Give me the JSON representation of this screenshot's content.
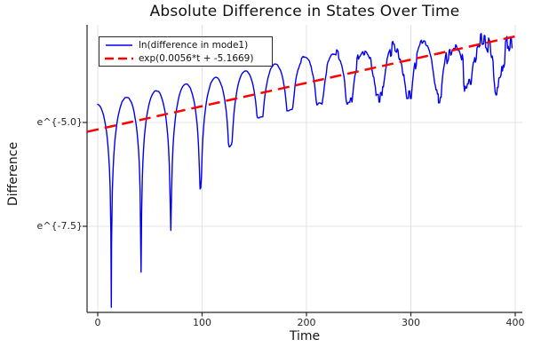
{
  "figure": {
    "background": "#ffffff"
  },
  "chart_data": {
    "type": "line",
    "title": "Absolute Difference in States Over Time",
    "xlabel": "Time",
    "ylabel": "Difference",
    "x_ticks": [
      0,
      100,
      200,
      300,
      400
    ],
    "y_ticks": [
      {
        "label": "e^{-5.0}",
        "ln_value": -5.0
      },
      {
        "label": "e^{-7.5}",
        "ln_value": -7.5
      }
    ],
    "x_range": [
      -10,
      405
    ],
    "y_scale": "ln",
    "y_range_ln": [
      -9.55,
      -2.65
    ],
    "grid": true,
    "legend_position": "top-left",
    "colors": {
      "series_blue": "#0000ee",
      "series_red": "#ff0000",
      "grid": "#dcdcdc",
      "axis": "#26262b",
      "background": "#ffffff",
      "text": "#111111"
    },
    "series": [
      {
        "name": "ln(difference in mode1)",
        "color": "#0000ee",
        "style": "solid",
        "line_width": 1.4,
        "model": {
          "type": "exp-envelope-abs-cos-ln",
          "slope": 0.0056,
          "intercept": -5.1669,
          "envelope_offset": 0.62,
          "envelope_offset_decay_start_t": 220,
          "envelope_offset_decay_rate": 0.0037,
          "first_dip_t": 13,
          "dip_period": 28.5,
          "dip_floor_coef": 0.004,
          "dip_floor_tau": 33.5,
          "dip_floor_cap": 0.3,
          "noise_base": 0.012,
          "noise_ramp_start_t": 170,
          "noise_ramp_rate": 0.0016,
          "noise_cap": 0.38,
          "t_start": 0,
          "t_end": 397,
          "dt": 0.7
        },
        "anchor_points": {
          "peaks_t_ln": [
            [
              27,
              -4.39
            ],
            [
              56,
              -4.23
            ],
            [
              84,
              -4.08
            ],
            [
              113,
              -3.92
            ],
            [
              141,
              -3.76
            ],
            [
              170,
              -3.6
            ],
            [
              198,
              -3.44
            ],
            [
              227,
              -3.3
            ],
            [
              255,
              -3.25
            ],
            [
              284,
              -3.19
            ],
            [
              312,
              -3.14
            ],
            [
              341,
              -3.09
            ],
            [
              369,
              -3.03
            ],
            [
              397,
              -2.98
            ]
          ],
          "dips_t_ln": [
            [
              13,
              -9.45
            ],
            [
              41.5,
              -8.6
            ],
            [
              70,
              -7.6
            ],
            [
              98.5,
              -6.5
            ],
            [
              127,
              -5.8
            ],
            [
              155.5,
              -4.9
            ],
            [
              184,
              -4.72
            ],
            [
              212.5,
              -4.56
            ],
            [
              241,
              -4.48
            ],
            [
              269.5,
              -4.43
            ],
            [
              298,
              -4.37
            ],
            [
              326.5,
              -4.32
            ],
            [
              355,
              -4.26
            ],
            [
              383.5,
              -4.21
            ]
          ]
        }
      },
      {
        "name": "exp(0.0056*t + -5.1669)",
        "color": "#ff0000",
        "style": "dashed",
        "line_width": 2.5,
        "fit": {
          "slope": 0.0056,
          "intercept": -5.1669
        },
        "t_start": -10,
        "t_end": 405
      }
    ]
  }
}
